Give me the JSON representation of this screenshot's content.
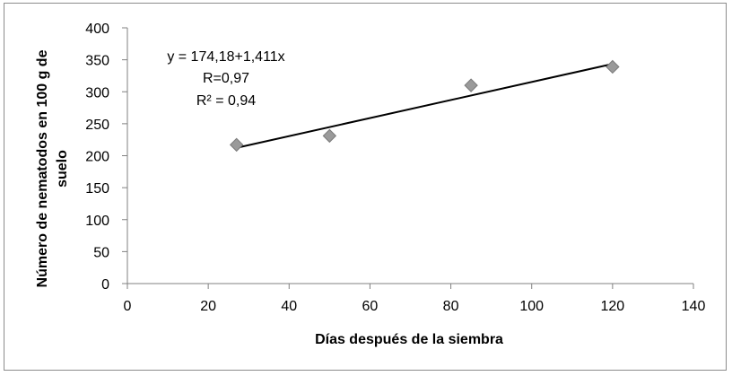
{
  "chart_data": {
    "type": "scatter",
    "title": "",
    "xlabel": "Días después de la siembra",
    "ylabel_lines": [
      "Número de nematodos en 100 g de",
      "suelo"
    ],
    "xlim": [
      0,
      140
    ],
    "ylim": [
      0,
      400
    ],
    "x_ticks": [
      0,
      20,
      40,
      60,
      80,
      100,
      120,
      140
    ],
    "y_ticks": [
      0,
      50,
      100,
      150,
      200,
      250,
      300,
      350,
      400
    ],
    "grid": false,
    "legend": "none",
    "series": [
      {
        "x": [
          27,
          50,
          85,
          120
        ],
        "y": [
          217,
          231,
          310,
          339
        ],
        "marker": "diamond",
        "color": "#9a9a9a"
      }
    ],
    "trendline": {
      "slope": 1.411,
      "intercept": 174.18,
      "x_range": [
        27,
        120
      ],
      "color": "#000000"
    },
    "annotations": [
      "y = 174,18+1,411x",
      "R=0,97",
      "R² = 0,94"
    ]
  }
}
